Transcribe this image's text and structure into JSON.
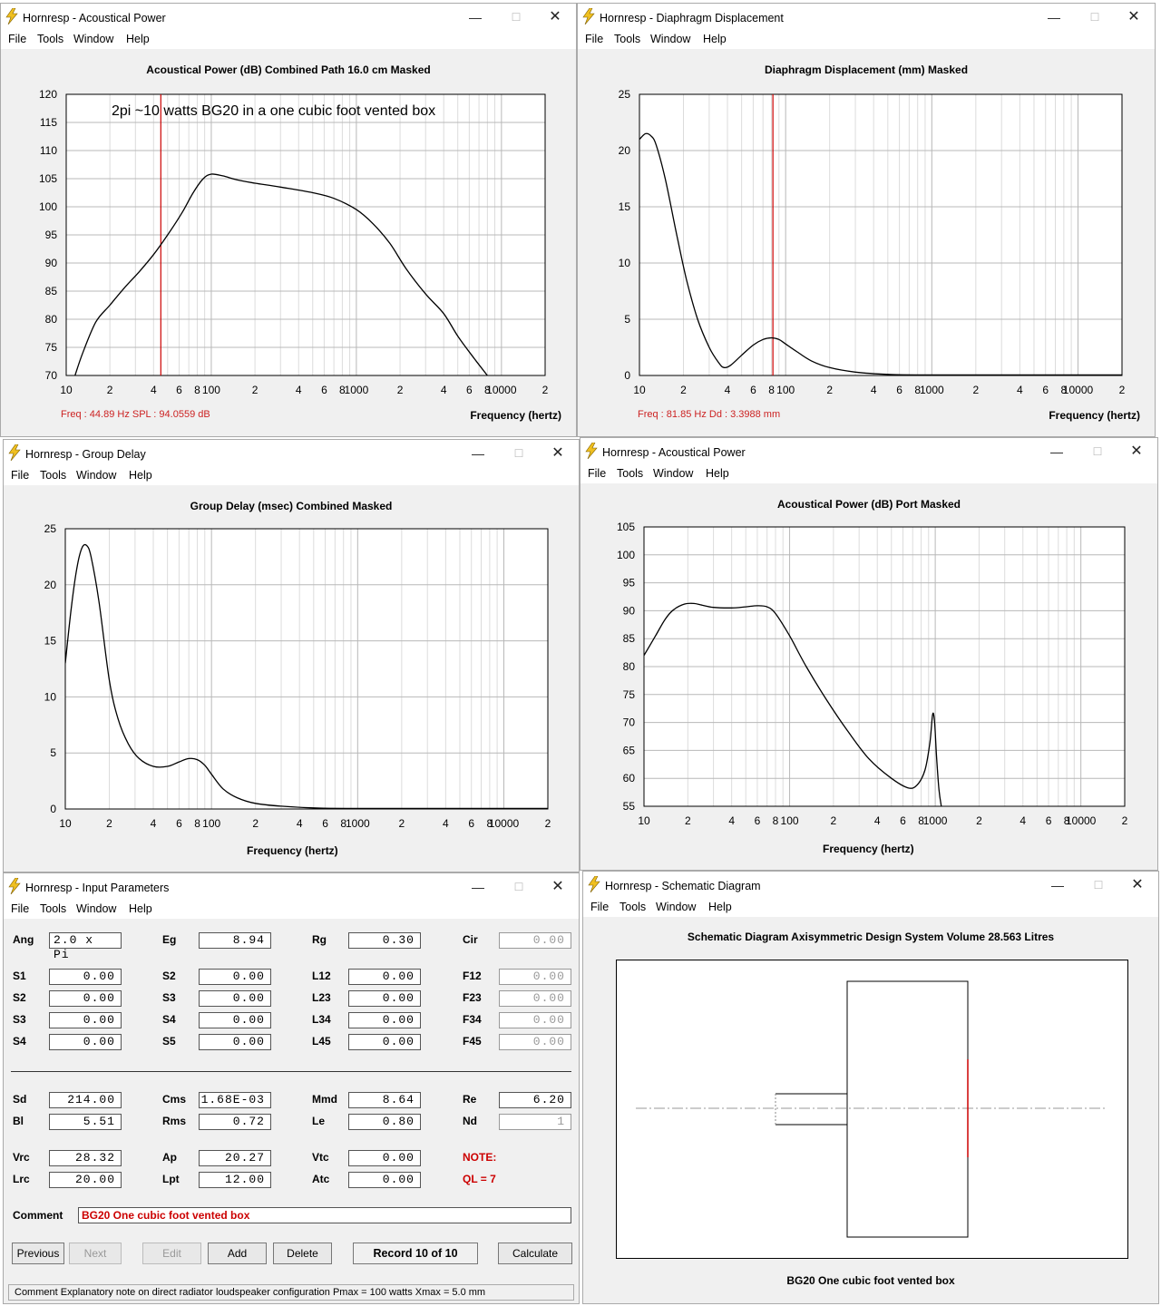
{
  "windows": {
    "w1": {
      "title": "Hornresp - Acoustical Power",
      "chart_title": "Acoustical Power (dB)   Combined   Path 16.0 cm   Masked",
      "annotation": "2pi ~10 watts  BG20 in a one cubic foot vented box",
      "readout": "Freq : 44.89 Hz     SPL : 94.0559 dB",
      "xlabel": "Frequency (hertz)"
    },
    "w2": {
      "title": "Hornresp - Diaphragm Displacement",
      "chart_title": "Diaphragm Displacement (mm)   Masked",
      "readout": "Freq : 81.85 Hz     Dd : 3.3988 mm",
      "xlabel": "Frequency (hertz)"
    },
    "w3": {
      "title": "Hornresp - Group Delay",
      "chart_title": "Group Delay (msec)   Combined   Masked",
      "xlabel": "Frequency (hertz)"
    },
    "w4": {
      "title": "Hornresp - Acoustical Power",
      "chart_title": "Acoustical Power (dB)   Port   Masked",
      "xlabel": "Frequency (hertz)"
    },
    "w5": {
      "title": "Hornresp - Input Parameters"
    },
    "w6": {
      "title": "Hornresp - Schematic Diagram",
      "chart_title": "Schematic Diagram   Axisymmetric Design   System Volume 28.563 Litres",
      "caption": "BG20 One cubic foot vented box"
    }
  },
  "menu": {
    "file": "File",
    "tools": "Tools",
    "window": "Window",
    "help": "Help"
  },
  "x_tick_labels": [
    "10",
    "2",
    "4",
    "6",
    "8",
    "100",
    "2",
    "4",
    "6",
    "8",
    "1000",
    "2",
    "4",
    "6",
    "8",
    "10000",
    "2"
  ],
  "chart_data": [
    {
      "type": "line",
      "title": "Acoustical Power (dB)   Combined   Path 16.0 cm   Masked",
      "xlabel": "Frequency (hertz)",
      "xscale": "log",
      "xlim": [
        10,
        20000
      ],
      "ylim": [
        70,
        120
      ],
      "yticks": [
        70,
        75,
        80,
        85,
        90,
        95,
        100,
        105,
        110,
        115,
        120
      ],
      "marker_x": 44.89,
      "points": [
        [
          11.5,
          70
        ],
        [
          13,
          74
        ],
        [
          16,
          79.5
        ],
        [
          20,
          82.5
        ],
        [
          25,
          85.5
        ],
        [
          32,
          88.5
        ],
        [
          40,
          91.5
        ],
        [
          50,
          95
        ],
        [
          63,
          99
        ],
        [
          75,
          102.5
        ],
        [
          88,
          105
        ],
        [
          100,
          105.8
        ],
        [
          120,
          105.5
        ],
        [
          150,
          104.8
        ],
        [
          200,
          104.2
        ],
        [
          300,
          103.5
        ],
        [
          500,
          102.5
        ],
        [
          700,
          101.5
        ],
        [
          1000,
          99.5
        ],
        [
          1300,
          97
        ],
        [
          1700,
          93.5
        ],
        [
          2200,
          89
        ],
        [
          3000,
          84.5
        ],
        [
          4000,
          81
        ],
        [
          5000,
          77
        ],
        [
          6500,
          73
        ],
        [
          8000,
          70
        ]
      ]
    },
    {
      "type": "line",
      "title": "Diaphragm Displacement (mm)   Masked",
      "xlabel": "Frequency (hertz)",
      "xscale": "log",
      "xlim": [
        10,
        20000
      ],
      "ylim": [
        0,
        25
      ],
      "yticks": [
        0,
        5,
        10,
        15,
        20,
        25
      ],
      "marker_x": 81.85,
      "points": [
        [
          10,
          21
        ],
        [
          11,
          21.5
        ],
        [
          12,
          21.3
        ],
        [
          13,
          20.5
        ],
        [
          15,
          17.5
        ],
        [
          18,
          12.5
        ],
        [
          21,
          8.5
        ],
        [
          25,
          5
        ],
        [
          30,
          2.5
        ],
        [
          35,
          1.1
        ],
        [
          38,
          0.7
        ],
        [
          42,
          0.9
        ],
        [
          50,
          1.8
        ],
        [
          60,
          2.7
        ],
        [
          70,
          3.2
        ],
        [
          80,
          3.35
        ],
        [
          90,
          3.2
        ],
        [
          100,
          2.8
        ],
        [
          120,
          2.1
        ],
        [
          150,
          1.3
        ],
        [
          200,
          0.7
        ],
        [
          300,
          0.3
        ],
        [
          500,
          0.1
        ],
        [
          1000,
          0.05
        ],
        [
          20000,
          0.05
        ]
      ]
    },
    {
      "type": "line",
      "title": "Group Delay (msec)   Combined   Masked",
      "xlabel": "Frequency (hertz)",
      "xscale": "log",
      "xlim": [
        10,
        20000
      ],
      "ylim": [
        0,
        25
      ],
      "yticks": [
        0,
        5,
        10,
        15,
        20,
        25
      ],
      "points": [
        [
          10,
          13
        ],
        [
          11,
          18
        ],
        [
          12,
          21.5
        ],
        [
          13,
          23.3
        ],
        [
          14,
          23.5
        ],
        [
          15,
          22.5
        ],
        [
          17,
          18.5
        ],
        [
          20,
          11.5
        ],
        [
          23,
          8
        ],
        [
          27,
          5.8
        ],
        [
          32,
          4.5
        ],
        [
          40,
          3.8
        ],
        [
          50,
          3.8
        ],
        [
          60,
          4.2
        ],
        [
          70,
          4.5
        ],
        [
          80,
          4.4
        ],
        [
          90,
          3.9
        ],
        [
          100,
          3.1
        ],
        [
          120,
          1.8
        ],
        [
          150,
          1
        ],
        [
          200,
          0.5
        ],
        [
          300,
          0.25
        ],
        [
          500,
          0.1
        ],
        [
          1000,
          0.05
        ],
        [
          20000,
          0.05
        ]
      ]
    },
    {
      "type": "line",
      "title": "Acoustical Power (dB)   Port   Masked",
      "xlabel": "Frequency (hertz)",
      "xscale": "log",
      "xlim": [
        10,
        20000
      ],
      "ylim": [
        55,
        105
      ],
      "yticks": [
        55,
        60,
        65,
        70,
        75,
        80,
        85,
        90,
        95,
        100,
        105
      ],
      "points": [
        [
          10,
          82
        ],
        [
          12,
          85.5
        ],
        [
          14,
          88.5
        ],
        [
          16,
          90.2
        ],
        [
          19,
          91.2
        ],
        [
          22,
          91.3
        ],
        [
          25,
          91
        ],
        [
          30,
          90.6
        ],
        [
          40,
          90.5
        ],
        [
          50,
          90.7
        ],
        [
          60,
          90.9
        ],
        [
          70,
          90.7
        ],
        [
          80,
          89.5
        ],
        [
          100,
          85.5
        ],
        [
          130,
          80
        ],
        [
          180,
          74
        ],
        [
          250,
          68.5
        ],
        [
          350,
          63.5
        ],
        [
          500,
          60
        ],
        [
          650,
          58.3
        ],
        [
          750,
          58.8
        ],
        [
          850,
          61.5
        ],
        [
          920,
          66.5
        ],
        [
          960,
          71.5
        ],
        [
          990,
          70
        ],
        [
          1020,
          64
        ],
        [
          1060,
          58
        ],
        [
          1100,
          55
        ]
      ]
    }
  ],
  "params": {
    "row1": [
      {
        "label": "Ang",
        "value": "2.0 x Pi"
      },
      {
        "label": "Eg",
        "value": "8.94"
      },
      {
        "label": "Rg",
        "value": "0.30"
      },
      {
        "label": "Cir",
        "value": "0.00"
      }
    ],
    "s_rows": [
      [
        {
          "label": "S1",
          "value": "0.00"
        },
        {
          "label": "S2",
          "value": "0.00"
        },
        {
          "label": "L12",
          "value": "0.00"
        },
        {
          "label": "F12",
          "value": "0.00"
        }
      ],
      [
        {
          "label": "S2",
          "value": "0.00"
        },
        {
          "label": "S3",
          "value": "0.00"
        },
        {
          "label": "L23",
          "value": "0.00"
        },
        {
          "label": "F23",
          "value": "0.00"
        }
      ],
      [
        {
          "label": "S3",
          "value": "0.00"
        },
        {
          "label": "S4",
          "value": "0.00"
        },
        {
          "label": "L34",
          "value": "0.00"
        },
        {
          "label": "F34",
          "value": "0.00"
        }
      ],
      [
        {
          "label": "S4",
          "value": "0.00"
        },
        {
          "label": "S5",
          "value": "0.00"
        },
        {
          "label": "L45",
          "value": "0.00"
        },
        {
          "label": "F45",
          "value": "0.00"
        }
      ]
    ],
    "drv_rows": [
      [
        {
          "label": "Sd",
          "value": "214.00"
        },
        {
          "label": "Cms",
          "value": "1.68E-03"
        },
        {
          "label": "Mmd",
          "value": "8.64"
        },
        {
          "label": "Re",
          "value": "6.20"
        }
      ],
      [
        {
          "label": "Bl",
          "value": "5.51"
        },
        {
          "label": "Rms",
          "value": "0.72"
        },
        {
          "label": "Le",
          "value": "0.80"
        },
        {
          "label": "Nd",
          "value": "1"
        }
      ]
    ],
    "box_rows": [
      [
        {
          "label": "Vrc",
          "value": "28.32"
        },
        {
          "label": "Ap",
          "value": "20.27"
        },
        {
          "label": "Vtc",
          "value": "0.00"
        },
        {
          "label": "NOTE:"
        }
      ],
      [
        {
          "label": "Lrc",
          "value": "20.00"
        },
        {
          "label": "Lpt",
          "value": "12.00"
        },
        {
          "label": "Atc",
          "value": "0.00"
        },
        {
          "label": "QL = 7"
        }
      ]
    ],
    "comment_label": "Comment",
    "comment_value": "BG20 One cubic foot vented box",
    "buttons": {
      "previous": "Previous",
      "next": "Next",
      "edit": "Edit",
      "add": "Add",
      "delete": "Delete",
      "record": "Record 10 of 10",
      "calculate": "Calculate"
    },
    "status": "Comment   Explanatory note on direct radiator loudspeaker configuration    Pmax = 100 watts   Xmax = 5.0 mm"
  },
  "colors": {
    "marker": "#cc0000",
    "note": "#cc0000",
    "comment_text": "#cc0000"
  }
}
